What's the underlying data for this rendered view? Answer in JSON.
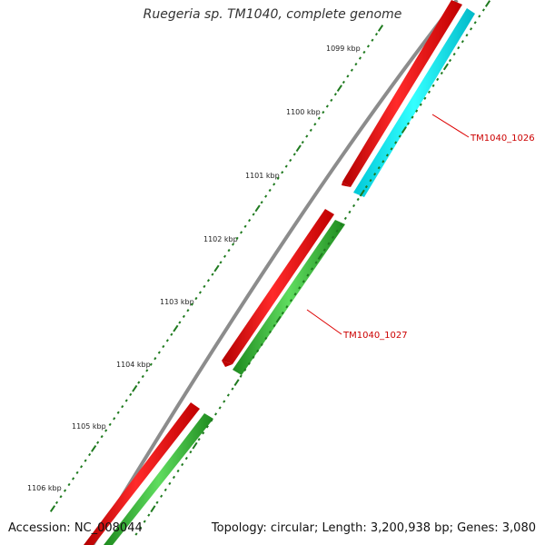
{
  "title": "Ruegeria sp. TM1040, complete genome",
  "accession": "Accession: NC_008044",
  "stats": "Topology: circular; Length: 3,200,938 bp; Genes: 3,080",
  "backbone_color": "#8c8c8c",
  "tick_color": "#1f7a1f",
  "ticks": [
    {
      "label": "1099 kbp"
    },
    {
      "label": "1100 kbp"
    },
    {
      "label": "1101 kbp"
    },
    {
      "label": "1102 kbp"
    },
    {
      "label": "1103 kbp"
    },
    {
      "label": "1104 kbp"
    },
    {
      "label": "1105 kbp"
    },
    {
      "label": "1106 kbp"
    }
  ],
  "genes": [
    {
      "name": "TM1040_1026",
      "forward_color": "#ff0000",
      "reverse_color": "#00ffff",
      "label_color": "#cc0000"
    },
    {
      "name": "TM1040_1027",
      "forward_color": "#ff0000",
      "reverse_color": "#33cc33",
      "label_color": "#cc0000"
    }
  ]
}
